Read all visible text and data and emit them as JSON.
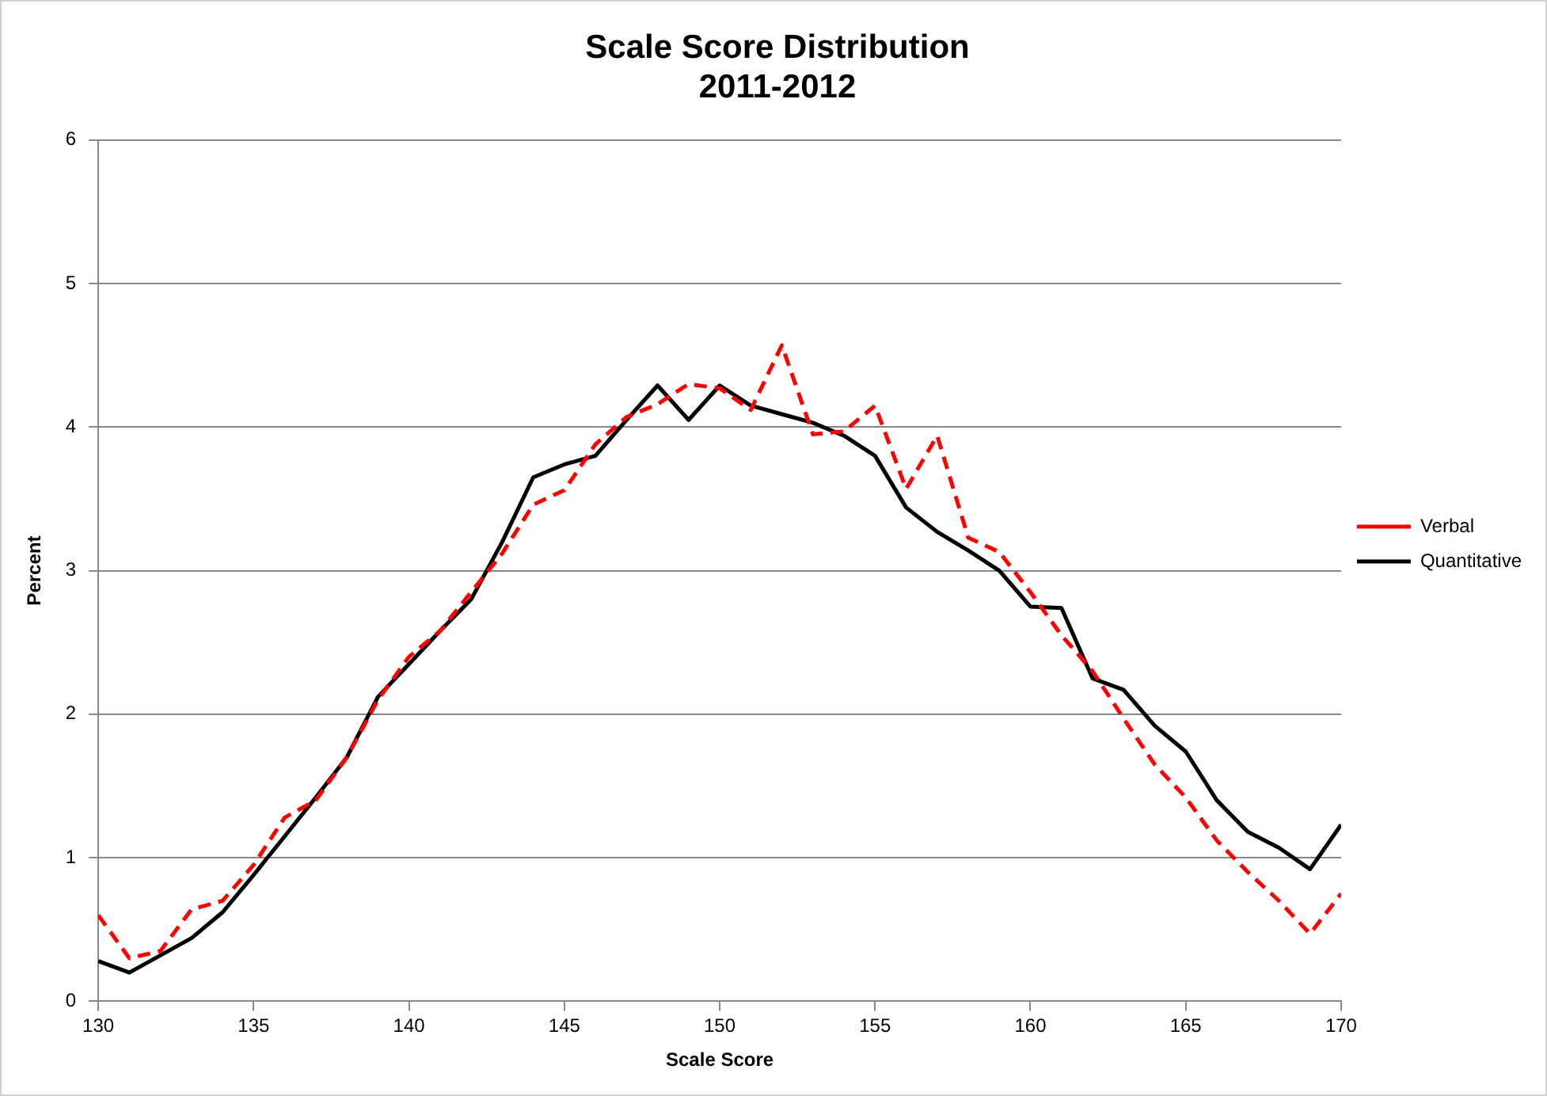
{
  "chart_data": {
    "type": "line",
    "title": "Scale Score Distribution\n2011-2012",
    "xlabel": "Scale Score",
    "ylabel": "Percent",
    "x": [
      130,
      131,
      132,
      133,
      134,
      135,
      136,
      137,
      138,
      139,
      140,
      141,
      142,
      143,
      144,
      145,
      146,
      147,
      148,
      149,
      150,
      151,
      152,
      153,
      154,
      155,
      156,
      157,
      158,
      159,
      160,
      161,
      162,
      163,
      164,
      165,
      166,
      167,
      168,
      169,
      170
    ],
    "series": [
      {
        "name": "Verbal",
        "color": "#ff0000",
        "line_style": "dashed",
        "values": [
          0.6,
          0.3,
          0.35,
          0.64,
          0.7,
          0.95,
          1.28,
          1.4,
          1.7,
          2.1,
          2.4,
          2.58,
          2.85,
          3.12,
          3.46,
          3.56,
          3.88,
          4.07,
          4.16,
          4.3,
          4.27,
          4.12,
          4.57,
          3.95,
          3.97,
          4.15,
          3.57,
          3.94,
          3.23,
          3.13,
          2.85,
          2.55,
          2.3,
          1.97,
          1.65,
          1.42,
          1.12,
          0.9,
          0.7,
          0.47,
          0.75
        ]
      },
      {
        "name": "Quantitative",
        "color": "#000000",
        "line_style": "solid",
        "values": [
          0.28,
          0.2,
          0.32,
          0.44,
          0.62,
          0.88,
          1.15,
          1.42,
          1.7,
          2.12,
          2.35,
          2.58,
          2.8,
          3.2,
          3.65,
          3.74,
          3.8,
          4.05,
          4.29,
          4.05,
          4.29,
          4.15,
          4.09,
          4.03,
          3.94,
          3.8,
          3.44,
          3.27,
          3.14,
          3.0,
          2.75,
          2.74,
          2.25,
          2.17,
          1.92,
          1.74,
          1.4,
          1.18,
          1.07,
          0.92,
          1.23
        ]
      }
    ],
    "xlim": [
      130,
      170
    ],
    "xticks": [
      130,
      135,
      140,
      145,
      150,
      155,
      160,
      165,
      170
    ],
    "ylim": [
      0,
      6
    ],
    "yticks": [
      0,
      1,
      2,
      3,
      4,
      5,
      6
    ],
    "grid": "y",
    "legend": "right",
    "marker": "none"
  }
}
